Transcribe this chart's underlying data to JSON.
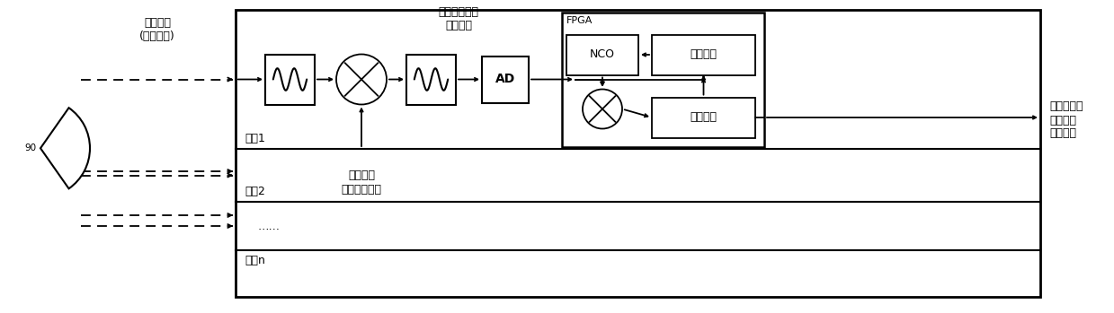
{
  "bg_color": "#ffffff",
  "line_color": "#000000",
  "fig_width": 12.39,
  "fig_height": 3.49,
  "dpi": 100,
  "labels": {
    "calib_signal_line1": "校准信号",
    "calib_signal_line2": "(线性调频)",
    "analog_if_line1": "模拟中频信号",
    "analog_if_line2": "（点频）",
    "channel1": "通道1",
    "channel2": "通道2",
    "channel_dots": "……",
    "channel_n": "通道n",
    "lo_line1": "本振信号",
    "lo_line2": "（线性调频）",
    "fpga": "FPGA",
    "nco": "NCO",
    "freq_meas": "频率测量",
    "decim_filter": "抽取滤波",
    "calib_out_line1": "校准后数字",
    "calib_out_line2": "基带信号",
    "calib_out_line3": "（点频）",
    "ad": "AD",
    "angle_label": "90"
  }
}
